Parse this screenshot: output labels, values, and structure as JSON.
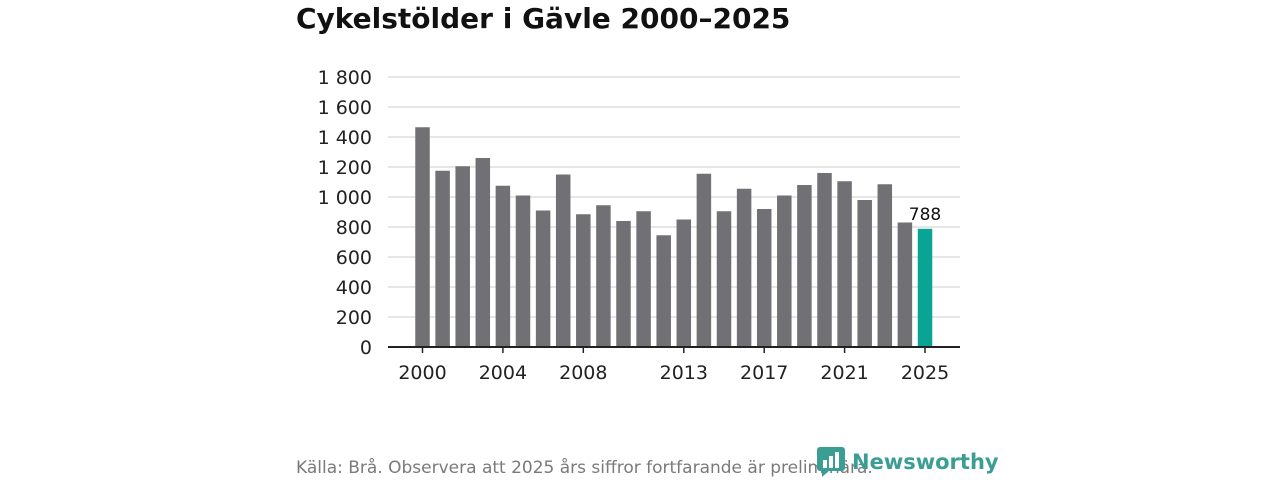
{
  "header": {
    "title": "Cykelstölder i Gävle 2000–2025"
  },
  "footer": {
    "source": "Källa: Brå. Observera att 2025 års siffror fortfarande är preliminära.",
    "brand": "Newsworthy"
  },
  "colors": {
    "bar": "#707075",
    "highlight": "#0aa494",
    "grid": "#dddddd",
    "axis": "#222222",
    "brand": "#3a9e94"
  },
  "chart_data": {
    "type": "bar",
    "title": "Cykelstölder i Gävle 2000–2025",
    "xlabel": "",
    "ylabel": "",
    "categories": [
      "2000",
      "2001",
      "2002",
      "2003",
      "2004",
      "2005",
      "2006",
      "2007",
      "2008",
      "2009",
      "2010",
      "2011",
      "2012",
      "2013",
      "2014",
      "2015",
      "2016",
      "2017",
      "2018",
      "2019",
      "2020",
      "2021",
      "2022",
      "2023",
      "2024",
      "2025"
    ],
    "values": [
      1465,
      1175,
      1205,
      1260,
      1075,
      1010,
      910,
      1150,
      885,
      945,
      840,
      905,
      745,
      850,
      1155,
      905,
      1055,
      920,
      1010,
      1080,
      1160,
      1105,
      980,
      1085,
      830,
      788
    ],
    "highlight_index": 25,
    "data_labels": [
      {
        "index": 25,
        "text": "788"
      }
    ],
    "ylim": [
      0,
      1800
    ],
    "yticks": [
      0,
      200,
      400,
      600,
      800,
      1000,
      1200,
      1400,
      1600,
      1800
    ],
    "ytick_labels": [
      "0",
      "200",
      "400",
      "600",
      "800",
      "1 000",
      "1 200",
      "1 400",
      "1 600",
      "1 800"
    ],
    "xtick_labels": [
      "2000",
      "2004",
      "2008",
      "2013",
      "2017",
      "2021",
      "2025"
    ],
    "grid": true,
    "legend": "none"
  }
}
